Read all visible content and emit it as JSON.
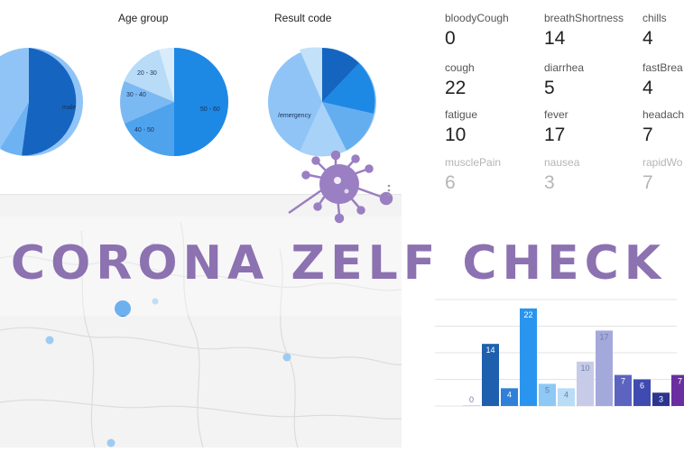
{
  "pies": [
    {
      "title": "",
      "labels": [
        "",
        "male"
      ]
    },
    {
      "title": "Age group",
      "labels": [
        "20 - 30",
        "30 - 40",
        "40 - 50",
        "50 - 60"
      ]
    },
    {
      "title": "Result code",
      "labels": [
        "/emergency"
      ]
    }
  ],
  "metrics": [
    {
      "label": "bloodyCough",
      "value": "0"
    },
    {
      "label": "breathShortness",
      "value": "14"
    },
    {
      "label": "chills",
      "value": "4"
    },
    {
      "label": "cough",
      "value": "22"
    },
    {
      "label": "diarrhea",
      "value": "5"
    },
    {
      "label": "fastBrea",
      "value": "4"
    },
    {
      "label": "fatigue",
      "value": "10"
    },
    {
      "label": "fever",
      "value": "17"
    },
    {
      "label": "headach",
      "value": "7"
    },
    {
      "label": "musclePain",
      "value": "6"
    },
    {
      "label": "nausea",
      "value": "3"
    },
    {
      "label": "rapidWo",
      "value": "7"
    }
  ],
  "banner": {
    "title": "CORONA ZELF CHECK"
  },
  "icons": {
    "virus": "virus-icon",
    "more": "more-vert-icon"
  },
  "colors": {
    "accent": "#8c72b0",
    "blue_dark": "#1565c0",
    "blue": "#1e88e5",
    "blue_light": "#90caf9"
  },
  "chart_data": {
    "type": "bar",
    "title": "",
    "xlabel": "",
    "ylabel": "",
    "values": [
      0,
      14,
      4,
      22,
      5,
      4,
      10,
      17,
      7,
      6,
      3,
      7
    ],
    "ylim": [
      0,
      24
    ],
    "grid": true,
    "colors": [
      "#cfd8e6",
      "#1e5fae",
      "#2f80d8",
      "#2a95ee",
      "#8ec8f5",
      "#b9dcf7",
      "#c7cbe8",
      "#a4a9dc",
      "#5c64c0",
      "#3f4bb0",
      "#2b358f",
      "#6a2ea0"
    ]
  }
}
